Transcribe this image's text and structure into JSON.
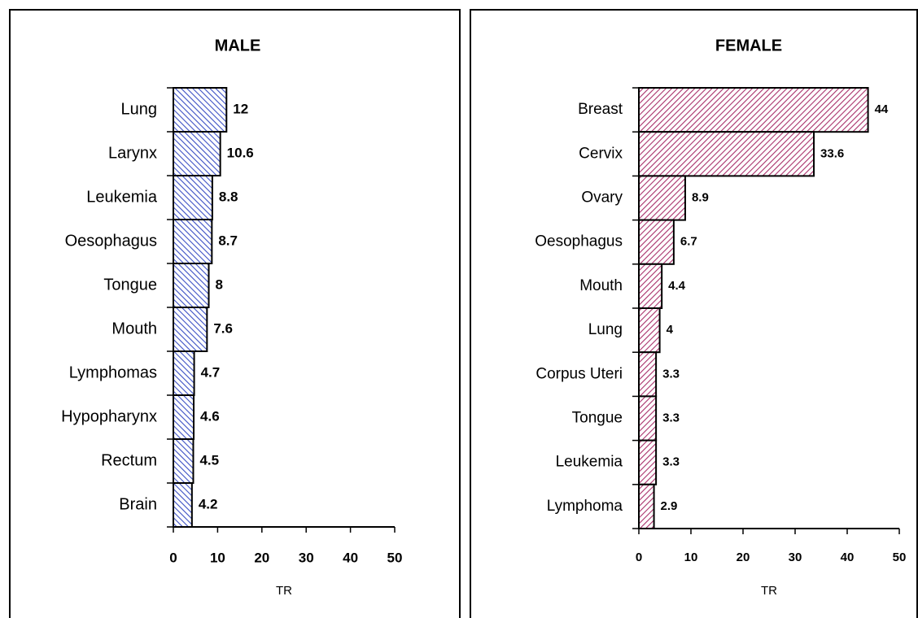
{
  "chart_data": [
    {
      "type": "barh",
      "title": "MALE",
      "xlabel": "TR",
      "categories": [
        "Lung",
        "Larynx",
        "Leukemia",
        "Oesophagus",
        "Tongue",
        "Mouth",
        "Lymphomas",
        "Hypopharynx",
        "Rectum",
        "Brain"
      ],
      "values": [
        12,
        10.6,
        8.8,
        8.7,
        8,
        7.6,
        4.7,
        4.6,
        4.5,
        4.2
      ],
      "color": "#3b4fc4",
      "xlim": [
        0,
        50
      ],
      "xticks": [
        0,
        10,
        20,
        30,
        40,
        50
      ]
    },
    {
      "type": "barh",
      "title": "FEMALE",
      "xlabel": "TR",
      "categories": [
        "Breast",
        "Cervix",
        "Ovary",
        "Oesophagus",
        "Mouth",
        "Lung",
        "Corpus Uteri",
        "Tongue",
        "Leukemia",
        "Lymphoma"
      ],
      "values": [
        44,
        33.6,
        8.9,
        6.7,
        4.4,
        4,
        3.3,
        3.3,
        3.3,
        2.9
      ],
      "color": "#a8306a",
      "xlim": [
        0,
        50
      ],
      "xticks": [
        0,
        10,
        20,
        30,
        40,
        50
      ]
    }
  ]
}
